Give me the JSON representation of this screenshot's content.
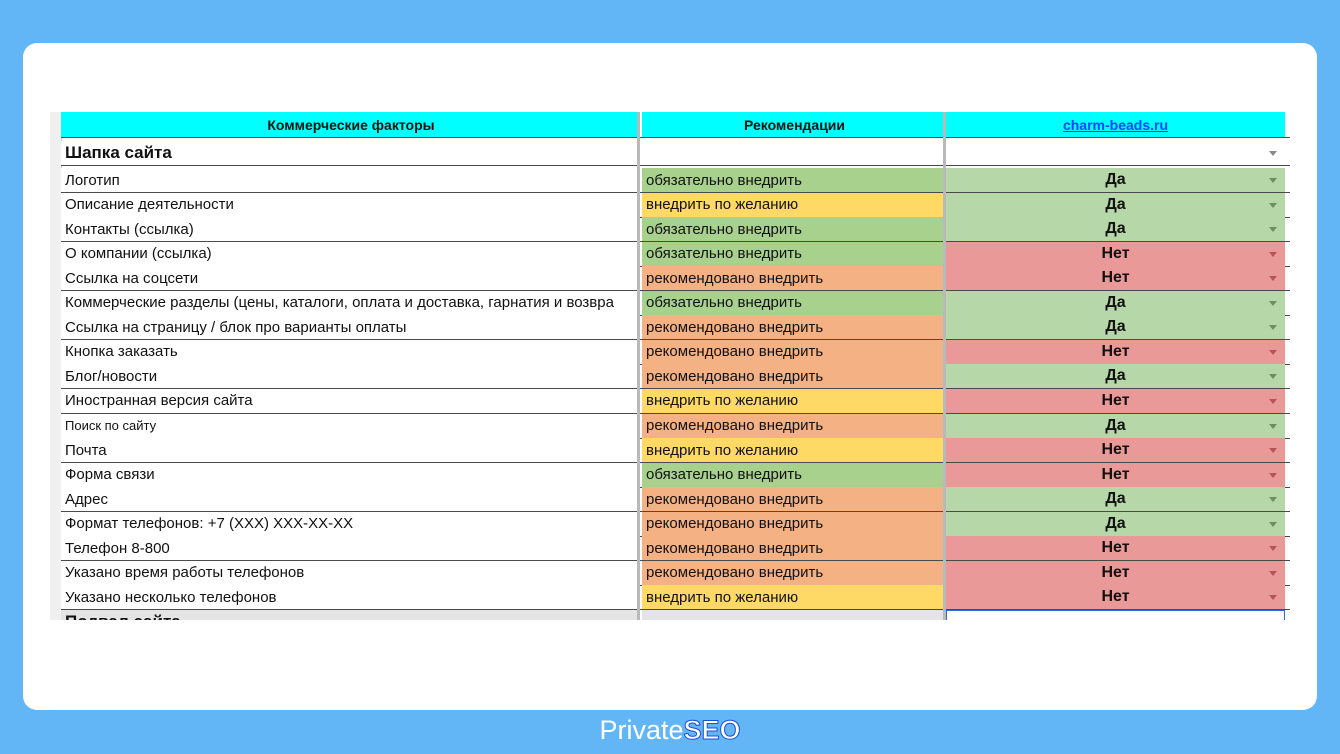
{
  "header": {
    "col_factors": "Коммерческие факторы",
    "col_recs": "Рекомендации",
    "col_site": "charm-beads.ru"
  },
  "colors": {
    "required": "#a9d18e",
    "optional": "#ffd966",
    "recommended": "#f4b183",
    "yes": "#b6d7a8",
    "no": "#ea9999",
    "header": "#00ffff"
  },
  "section_title": "Шапка сайта",
  "next_section_title": "Подвал сайта",
  "rows": [
    {
      "factor": "Логотип",
      "rec": "обязательно внедрить",
      "rec_type": "required",
      "value": "Да"
    },
    {
      "factor": "Описание деятельности",
      "rec": "внедрить по желанию",
      "rec_type": "optional",
      "value": "Да"
    },
    {
      "factor": "Контакты (ссылка)",
      "rec": "обязательно внедрить",
      "rec_type": "required",
      "value": "Да"
    },
    {
      "factor": "О компании (ссылка)",
      "rec": "обязательно внедрить",
      "rec_type": "required",
      "value": "Нет"
    },
    {
      "factor": "Ссылка на соцсети",
      "rec": "рекомендовано внедрить",
      "rec_type": "recommended",
      "value": "Нет"
    },
    {
      "factor": "Коммерческие разделы (цены, каталоги, оплата и доставка, гарнатия и возвра",
      "rec": "обязательно внедрить",
      "rec_type": "required",
      "value": "Да"
    },
    {
      "factor": "Ссылка на страницу / блок про варианты оплаты",
      "rec": "рекомендовано внедрить",
      "rec_type": "recommended",
      "value": "Да"
    },
    {
      "factor": "Кнопка заказать",
      "rec": "рекомендовано внедрить",
      "rec_type": "recommended",
      "value": "Нет"
    },
    {
      "factor": "Блог/новости",
      "rec": "рекомендовано внедрить",
      "rec_type": "recommended",
      "value": "Да"
    },
    {
      "factor": "Иностранная версия сайта",
      "rec": "внедрить по желанию",
      "rec_type": "optional",
      "value": "Нет"
    },
    {
      "factor": "Поиск по сайту",
      "rec": "рекомендовано внедрить",
      "rec_type": "recommended",
      "value": "Да",
      "small": true
    },
    {
      "factor": "Почта",
      "rec": "внедрить по желанию",
      "rec_type": "optional",
      "value": "Нет"
    },
    {
      "factor": "Форма связи",
      "rec": "обязательно внедрить",
      "rec_type": "required",
      "value": "Нет"
    },
    {
      "factor": "Адрес",
      "rec": "рекомендовано внедрить",
      "rec_type": "recommended",
      "value": "Да"
    },
    {
      "factor": "Формат телефонов: +7 (XXX) XXX-XX-XX",
      "rec": "рекомендовано внедрить",
      "rec_type": "recommended",
      "value": "Да"
    },
    {
      "factor": "Телефон 8-800",
      "rec": "рекомендовано внедрить",
      "rec_type": "recommended",
      "value": "Нет"
    },
    {
      "factor": "Указано время работы телефонов",
      "rec": "рекомендовано внедрить",
      "rec_type": "recommended",
      "value": "Нет"
    },
    {
      "factor": "Указано несколько телефонов",
      "rec": "внедрить по желанию",
      "rec_type": "optional",
      "value": "Нет"
    }
  ],
  "brand": {
    "part1": "Private",
    "part2": "SEO"
  }
}
